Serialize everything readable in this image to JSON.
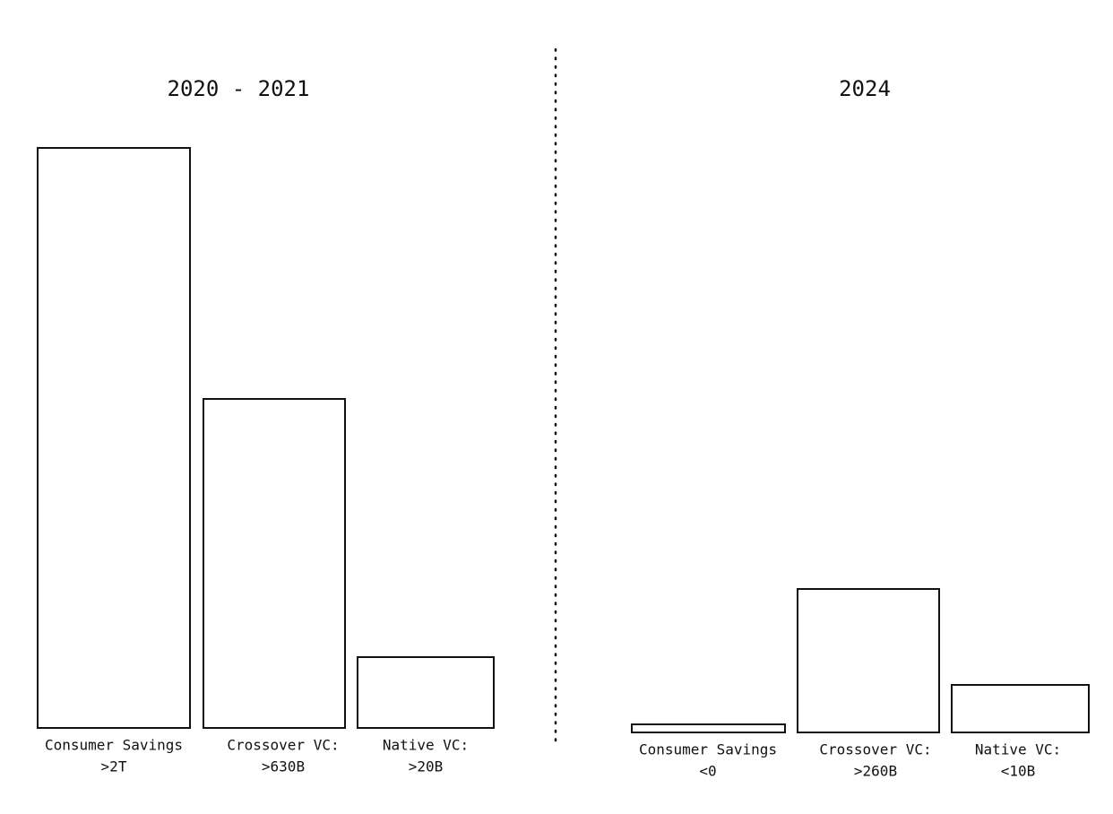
{
  "panels": [
    {
      "title": "2020 - 2021",
      "bars": [
        {
          "label": "Consumer Savings",
          "value_label": ">2T"
        },
        {
          "label": "Crossover VC:",
          "value_label": ">630B"
        },
        {
          "label": "Native VC:",
          "value_label": ">20B"
        }
      ]
    },
    {
      "title": "2024",
      "bars": [
        {
          "label": "Consumer Savings",
          "value_label": "<0"
        },
        {
          "label": "Crossover VC:",
          "value_label": ">260B"
        },
        {
          "label": "Native VC:",
          "value_label": "<10B"
        }
      ]
    }
  ]
}
